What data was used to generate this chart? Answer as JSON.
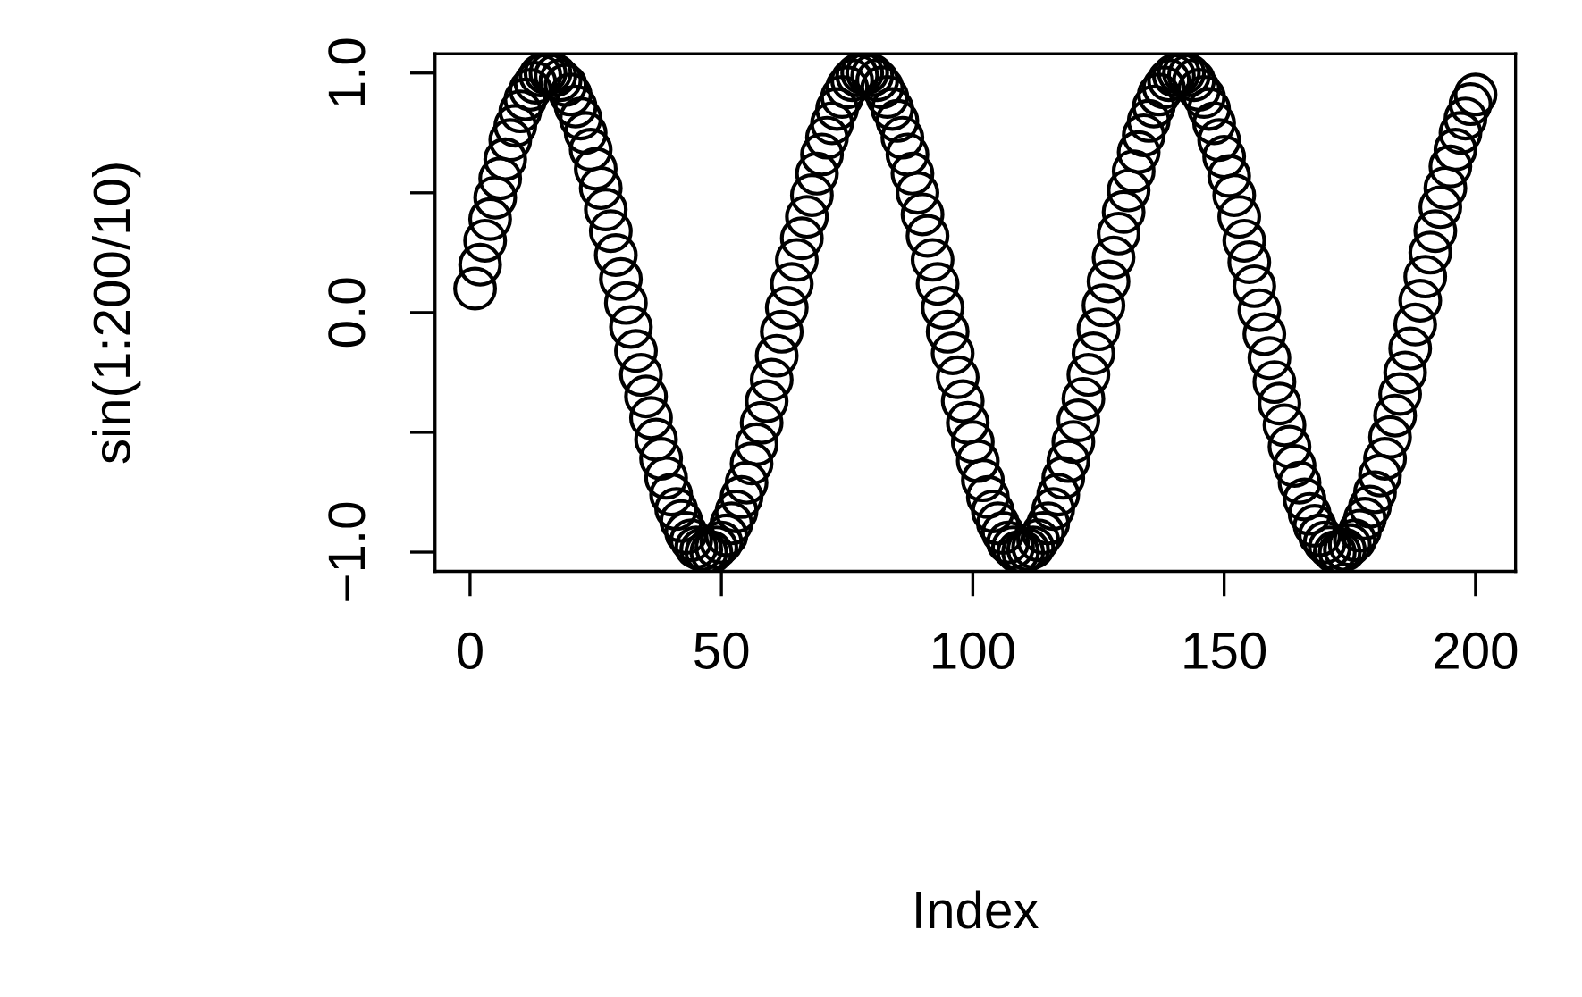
{
  "chart_data": {
    "type": "scatter",
    "xlabel": "Index",
    "ylabel": "sin(1:200/10)",
    "x": [
      1,
      2,
      3,
      4,
      5,
      6,
      7,
      8,
      9,
      10,
      11,
      12,
      13,
      14,
      15,
      16,
      17,
      18,
      19,
      20,
      21,
      22,
      23,
      24,
      25,
      26,
      27,
      28,
      29,
      30,
      31,
      32,
      33,
      34,
      35,
      36,
      37,
      38,
      39,
      40,
      41,
      42,
      43,
      44,
      45,
      46,
      47,
      48,
      49,
      50,
      51,
      52,
      53,
      54,
      55,
      56,
      57,
      58,
      59,
      60,
      61,
      62,
      63,
      64,
      65,
      66,
      67,
      68,
      69,
      70,
      71,
      72,
      73,
      74,
      75,
      76,
      77,
      78,
      79,
      80,
      81,
      82,
      83,
      84,
      85,
      86,
      87,
      88,
      89,
      90,
      91,
      92,
      93,
      94,
      95,
      96,
      97,
      98,
      99,
      100,
      101,
      102,
      103,
      104,
      105,
      106,
      107,
      108,
      109,
      110,
      111,
      112,
      113,
      114,
      115,
      116,
      117,
      118,
      119,
      120,
      121,
      122,
      123,
      124,
      125,
      126,
      127,
      128,
      129,
      130,
      131,
      132,
      133,
      134,
      135,
      136,
      137,
      138,
      139,
      140,
      141,
      142,
      143,
      144,
      145,
      146,
      147,
      148,
      149,
      150,
      151,
      152,
      153,
      154,
      155,
      156,
      157,
      158,
      159,
      160,
      161,
      162,
      163,
      164,
      165,
      166,
      167,
      168,
      169,
      170,
      171,
      172,
      173,
      174,
      175,
      176,
      177,
      178,
      179,
      180,
      181,
      182,
      183,
      184,
      185,
      186,
      187,
      188,
      189,
      190,
      191,
      192,
      193,
      194,
      195,
      196,
      197,
      198,
      199,
      200
    ],
    "series": [
      {
        "color": "#000000",
        "values": [
          0.1,
          0.2,
          0.3,
          0.39,
          0.48,
          0.56,
          0.64,
          0.72,
          0.78,
          0.84,
          0.89,
          0.93,
          0.96,
          0.99,
          1.0,
          1.0,
          0.99,
          0.97,
          0.95,
          0.91,
          0.86,
          0.81,
          0.75,
          0.68,
          0.6,
          0.52,
          0.43,
          0.34,
          0.24,
          0.14,
          0.04,
          -0.06,
          -0.16,
          -0.26,
          -0.35,
          -0.44,
          -0.53,
          -0.61,
          -0.69,
          -0.76,
          -0.82,
          -0.87,
          -0.92,
          -0.95,
          -0.98,
          -0.99,
          -1.0,
          -1.0,
          -0.98,
          -0.96,
          -0.93,
          -0.88,
          -0.83,
          -0.77,
          -0.71,
          -0.63,
          -0.55,
          -0.46,
          -0.37,
          -0.28,
          -0.18,
          -0.08,
          0.02,
          0.12,
          0.22,
          0.31,
          0.4,
          0.49,
          0.58,
          0.66,
          0.73,
          0.79,
          0.85,
          0.9,
          0.94,
          0.97,
          0.99,
          1.0,
          1.0,
          0.99,
          0.97,
          0.94,
          0.9,
          0.85,
          0.8,
          0.73,
          0.66,
          0.58,
          0.5,
          0.41,
          0.32,
          0.22,
          0.12,
          0.02,
          -0.08,
          -0.17,
          -0.27,
          -0.37,
          -0.46,
          -0.54,
          -0.62,
          -0.7,
          -0.77,
          -0.83,
          -0.88,
          -0.92,
          -0.96,
          -0.98,
          -1.0,
          -1.0,
          -0.99,
          -0.98,
          -0.95,
          -0.92,
          -0.88,
          -0.82,
          -0.76,
          -0.69,
          -0.62,
          -0.54,
          -0.45,
          -0.36,
          -0.26,
          -0.17,
          -0.07,
          0.03,
          0.13,
          0.23,
          0.33,
          0.42,
          0.51,
          0.59,
          0.67,
          0.74,
          0.8,
          0.86,
          0.91,
          0.94,
          0.97,
          0.99,
          1.0,
          1.0,
          0.99,
          0.97,
          0.93,
          0.9,
          0.85,
          0.79,
          0.72,
          0.65,
          0.57,
          0.49,
          0.4,
          0.3,
          0.21,
          0.11,
          0.01,
          -0.09,
          -0.19,
          -0.29,
          -0.38,
          -0.47,
          -0.56,
          -0.64,
          -0.71,
          -0.78,
          -0.84,
          -0.89,
          -0.93,
          -0.96,
          -0.98,
          -1.0,
          -1.0,
          -0.99,
          -0.97,
          -0.95,
          -0.91,
          -0.86,
          -0.81,
          -0.75,
          -0.68,
          -0.61,
          -0.52,
          -0.43,
          -0.34,
          -0.25,
          -0.15,
          -0.05,
          0.05,
          0.15,
          0.25,
          0.34,
          0.44,
          0.52,
          0.61,
          0.68,
          0.75,
          0.81,
          0.87,
          0.91
        ]
      }
    ],
    "xlim": [
      -6.96,
      207.96
    ],
    "ylim": [
      -1.08,
      1.08
    ],
    "xticks": [
      0,
      50,
      100,
      150,
      200
    ],
    "yticks": [
      {
        "value": -1,
        "label": "−1.0"
      },
      {
        "value": -0.5,
        "label": null
      },
      {
        "value": 0,
        "label": "0.0"
      },
      {
        "value": 0.5,
        "label": null
      },
      {
        "value": 1,
        "label": "1.0"
      }
    ],
    "marker": "circle",
    "grid": false,
    "legend": false
  }
}
